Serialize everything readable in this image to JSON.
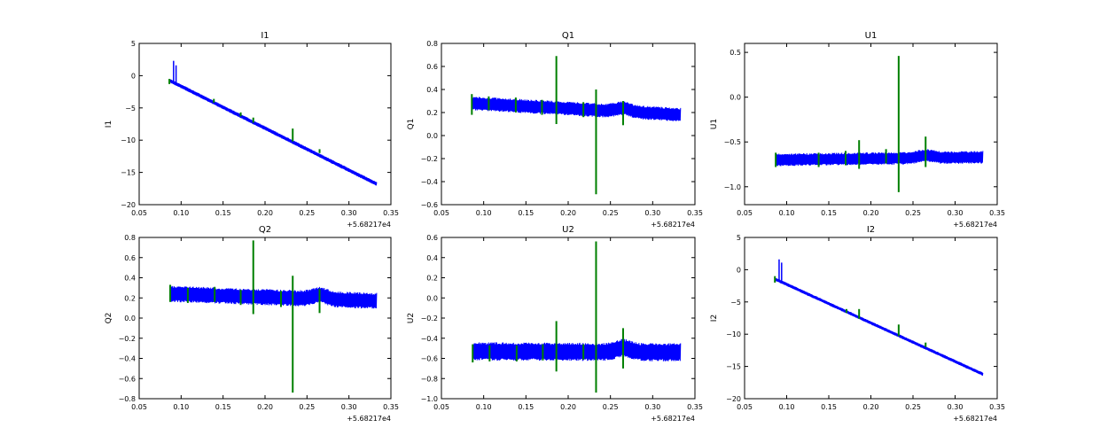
{
  "figure": {
    "background": "#ffffff"
  },
  "colors": {
    "blue": "#0000ff",
    "green": "#007f00"
  },
  "chart_data": [
    {
      "type": "line",
      "title": "I1",
      "ylabel": "I1",
      "xlim": [
        0.05,
        0.35
      ],
      "ylim": [
        -20,
        5
      ],
      "xticks": [
        "0.05",
        "0.10",
        "0.15",
        "0.20",
        "0.25",
        "0.30",
        "0.35"
      ],
      "xtick_values": [
        0.05,
        0.1,
        0.15,
        0.2,
        0.25,
        0.3,
        0.35
      ],
      "yticks": [
        "5",
        "0",
        "−5",
        "−10",
        "−15",
        "−20"
      ],
      "ytick_values": [
        5,
        0,
        -5,
        -10,
        -15,
        -20
      ],
      "x_offset_label": "+5.68217e4",
      "series": [
        {
          "color": "#0000ff",
          "kind": "band",
          "x": [
            0.087,
            0.333
          ],
          "center": [
            -0.8,
            -16.8
          ],
          "band_halfwidth": 0.3,
          "spikes": [
            {
              "x": 0.091,
              "y0": -1.0,
              "y1": 2.3
            },
            {
              "x": 0.094,
              "y0": -1.1,
              "y1": 1.6
            }
          ]
        },
        {
          "color": "#007f00",
          "kind": "spikes",
          "spikes": [
            {
              "x": 0.086,
              "y0": -1.3,
              "y1": -0.5
            },
            {
              "x": 0.139,
              "y0": -4.2,
              "y1": -3.6
            },
            {
              "x": 0.171,
              "y0": -6.3,
              "y1": -5.7
            },
            {
              "x": 0.186,
              "y0": -7.3,
              "y1": -6.5
            },
            {
              "x": 0.233,
              "y0": -10.2,
              "y1": -8.2
            },
            {
              "x": 0.265,
              "y0": -12.0,
              "y1": -11.4
            }
          ]
        }
      ]
    },
    {
      "type": "line",
      "title": "Q1",
      "ylabel": "Q1",
      "xlim": [
        0.05,
        0.35
      ],
      "ylim": [
        -0.6,
        0.8
      ],
      "xticks": [
        "0.05",
        "0.10",
        "0.15",
        "0.20",
        "0.25",
        "0.30",
        "0.35"
      ],
      "xtick_values": [
        0.05,
        0.1,
        0.15,
        0.2,
        0.25,
        0.3,
        0.35
      ],
      "yticks": [
        "0.8",
        "0.6",
        "0.4",
        "0.2",
        "0.0",
        "−0.2",
        "−0.4",
        "−0.6"
      ],
      "ytick_values": [
        0.8,
        0.6,
        0.4,
        0.2,
        0.0,
        -0.2,
        -0.4,
        -0.6
      ],
      "x_offset_label": "+5.68217e4",
      "series": [
        {
          "color": "#0000ff",
          "kind": "band",
          "x": [
            0.087,
            0.333
          ],
          "center": [
            0.28,
            0.18
          ],
          "band_halfwidth": 0.06,
          "bump": {
            "x": 0.265,
            "amp": 0.03
          }
        },
        {
          "color": "#007f00",
          "kind": "spikes",
          "spikes": [
            {
              "x": 0.086,
              "y0": 0.18,
              "y1": 0.36
            },
            {
              "x": 0.106,
              "y0": 0.22,
              "y1": 0.34
            },
            {
              "x": 0.138,
              "y0": 0.2,
              "y1": 0.33
            },
            {
              "x": 0.169,
              "y0": 0.18,
              "y1": 0.31
            },
            {
              "x": 0.186,
              "y0": 0.1,
              "y1": 0.69
            },
            {
              "x": 0.218,
              "y0": 0.16,
              "y1": 0.29
            },
            {
              "x": 0.233,
              "y0": -0.51,
              "y1": 0.4
            },
            {
              "x": 0.265,
              "y0": 0.09,
              "y1": 0.3
            }
          ]
        }
      ]
    },
    {
      "type": "line",
      "title": "U1",
      "ylabel": "U1",
      "xlim": [
        0.05,
        0.35
      ],
      "ylim": [
        -1.2,
        0.6
      ],
      "xticks": [
        "0.05",
        "0.10",
        "0.15",
        "0.20",
        "0.25",
        "0.30",
        "0.35"
      ],
      "xtick_values": [
        0.05,
        0.1,
        0.15,
        0.2,
        0.25,
        0.3,
        0.35
      ],
      "yticks": [
        "0.5",
        "0.0",
        "−0.5",
        "−1.0"
      ],
      "ytick_values": [
        0.5,
        0.0,
        -0.5,
        -1.0
      ],
      "x_offset_label": "+5.68217e4",
      "series": [
        {
          "color": "#0000ff",
          "kind": "band",
          "x": [
            0.087,
            0.333
          ],
          "center": [
            -0.7,
            -0.67
          ],
          "band_halfwidth": 0.07,
          "bump": {
            "x": 0.265,
            "amp": 0.03
          }
        },
        {
          "color": "#007f00",
          "kind": "spikes",
          "spikes": [
            {
              "x": 0.087,
              "y0": -0.78,
              "y1": -0.62
            },
            {
              "x": 0.138,
              "y0": -0.78,
              "y1": -0.62
            },
            {
              "x": 0.17,
              "y0": -0.76,
              "y1": -0.6
            },
            {
              "x": 0.186,
              "y0": -0.8,
              "y1": -0.48
            },
            {
              "x": 0.218,
              "y0": -0.74,
              "y1": -0.58
            },
            {
              "x": 0.233,
              "y0": -1.06,
              "y1": 0.46
            },
            {
              "x": 0.265,
              "y0": -0.78,
              "y1": -0.44
            }
          ]
        }
      ]
    },
    {
      "type": "line",
      "title": "Q2",
      "ylabel": "Q2",
      "xlim": [
        0.05,
        0.35
      ],
      "ylim": [
        -0.8,
        0.8
      ],
      "xticks": [
        "0.05",
        "0.10",
        "0.15",
        "0.20",
        "0.25",
        "0.30",
        "0.35"
      ],
      "xtick_values": [
        0.05,
        0.1,
        0.15,
        0.2,
        0.25,
        0.3,
        0.35
      ],
      "yticks": [
        "0.8",
        "0.6",
        "0.4",
        "0.2",
        "0.0",
        "−0.2",
        "−0.4",
        "−0.6",
        "−0.8"
      ],
      "ytick_values": [
        0.8,
        0.6,
        0.4,
        0.2,
        0.0,
        -0.2,
        -0.4,
        -0.6,
        -0.8
      ],
      "x_offset_label": "+5.68217e4",
      "series": [
        {
          "color": "#0000ff",
          "kind": "band",
          "x": [
            0.087,
            0.333
          ],
          "center": [
            0.24,
            0.17
          ],
          "band_halfwidth": 0.08,
          "bump": {
            "x": 0.265,
            "amp": 0.04
          }
        },
        {
          "color": "#007f00",
          "kind": "spikes",
          "spikes": [
            {
              "x": 0.087,
              "y0": 0.16,
              "y1": 0.33
            },
            {
              "x": 0.108,
              "y0": 0.15,
              "y1": 0.3
            },
            {
              "x": 0.14,
              "y0": 0.16,
              "y1": 0.31
            },
            {
              "x": 0.171,
              "y0": 0.13,
              "y1": 0.28
            },
            {
              "x": 0.186,
              "y0": 0.04,
              "y1": 0.77
            },
            {
              "x": 0.219,
              "y0": 0.11,
              "y1": 0.27
            },
            {
              "x": 0.233,
              "y0": -0.74,
              "y1": 0.42
            },
            {
              "x": 0.265,
              "y0": 0.05,
              "y1": 0.29
            }
          ]
        }
      ]
    },
    {
      "type": "line",
      "title": "U2",
      "ylabel": "U2",
      "xlim": [
        0.05,
        0.35
      ],
      "ylim": [
        -1.0,
        0.6
      ],
      "xticks": [
        "0.05",
        "0.10",
        "0.15",
        "0.20",
        "0.25",
        "0.30",
        "0.35"
      ],
      "xtick_values": [
        0.05,
        0.1,
        0.15,
        0.2,
        0.25,
        0.3,
        0.35
      ],
      "yticks": [
        "0.6",
        "0.4",
        "0.2",
        "0.0",
        "−0.2",
        "−0.4",
        "−0.6",
        "−0.8",
        "−1.0"
      ],
      "ytick_values": [
        0.6,
        0.4,
        0.2,
        0.0,
        -0.2,
        -0.4,
        -0.6,
        -0.8,
        -1.0
      ],
      "x_offset_label": "+5.68217e4",
      "series": [
        {
          "color": "#0000ff",
          "kind": "band",
          "x": [
            0.087,
            0.333
          ],
          "center": [
            -0.53,
            -0.54
          ],
          "band_halfwidth": 0.09,
          "bump": {
            "x": 0.265,
            "amp": 0.04
          }
        },
        {
          "color": "#007f00",
          "kind": "spikes",
          "spikes": [
            {
              "x": 0.087,
              "y0": -0.64,
              "y1": -0.46
            },
            {
              "x": 0.107,
              "y0": -0.63,
              "y1": -0.47
            },
            {
              "x": 0.139,
              "y0": -0.63,
              "y1": -0.47
            },
            {
              "x": 0.17,
              "y0": -0.62,
              "y1": -0.46
            },
            {
              "x": 0.186,
              "y0": -0.73,
              "y1": -0.23
            },
            {
              "x": 0.218,
              "y0": -0.61,
              "y1": -0.46
            },
            {
              "x": 0.233,
              "y0": -0.94,
              "y1": 0.56
            },
            {
              "x": 0.265,
              "y0": -0.7,
              "y1": -0.3
            }
          ]
        }
      ]
    },
    {
      "type": "line",
      "title": "I2",
      "ylabel": "I2",
      "xlim": [
        0.05,
        0.35
      ],
      "ylim": [
        -20,
        5
      ],
      "xticks": [
        "0.05",
        "0.10",
        "0.15",
        "0.20",
        "0.25",
        "0.30",
        "0.35"
      ],
      "xtick_values": [
        0.05,
        0.1,
        0.15,
        0.2,
        0.25,
        0.3,
        0.35
      ],
      "yticks": [
        "5",
        "0",
        "−5",
        "−10",
        "−15",
        "−20"
      ],
      "ytick_values": [
        5,
        0,
        -5,
        -10,
        -15,
        -20
      ],
      "x_offset_label": "+5.68217e4",
      "series": [
        {
          "color": "#0000ff",
          "kind": "band",
          "x": [
            0.087,
            0.333
          ],
          "center": [
            -1.5,
            -16.2
          ],
          "band_halfwidth": 0.25,
          "spikes": [
            {
              "x": 0.091,
              "y0": -1.6,
              "y1": 1.6
            },
            {
              "x": 0.094,
              "y0": -1.7,
              "y1": 1.1
            }
          ]
        },
        {
          "color": "#007f00",
          "kind": "spikes",
          "spikes": [
            {
              "x": 0.086,
              "y0": -2.0,
              "y1": -1.0
            },
            {
              "x": 0.171,
              "y0": -6.7,
              "y1": -6.1
            },
            {
              "x": 0.186,
              "y0": -7.6,
              "y1": -6.1
            },
            {
              "x": 0.233,
              "y0": -10.3,
              "y1": -8.5
            },
            {
              "x": 0.265,
              "y0": -12.0,
              "y1": -11.3
            }
          ]
        }
      ]
    }
  ]
}
